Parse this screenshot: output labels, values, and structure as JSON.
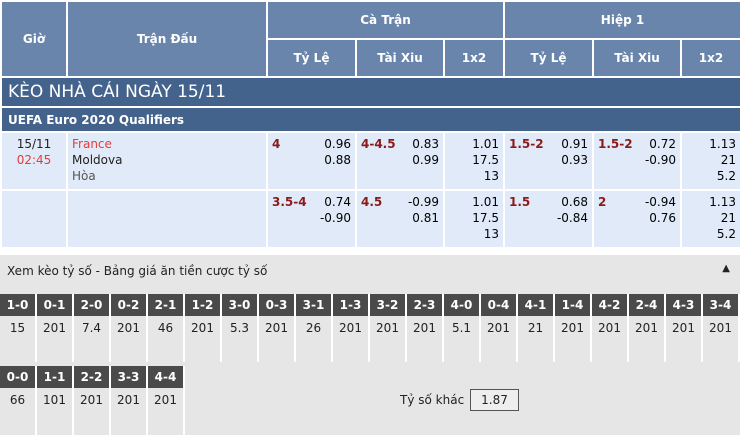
{
  "header": {
    "time": "Giờ",
    "match": "Trận Đấu",
    "full": "Cà Trận",
    "half": "Hiệp 1",
    "hcap": "Tỷ Lệ",
    "ou": "Tài Xiu",
    "x12": "1x2"
  },
  "title": "KÈO NHÀ CÁI NGÀY 15/11",
  "league": "UEFA Euro 2020 Qualifiers",
  "match": {
    "date": "15/11",
    "time": "02:45",
    "home": "France",
    "away": "Moldova",
    "draw": "Hòa"
  },
  "rows": [
    {
      "ft_h": "4",
      "ft_h1": "0.96",
      "ft_h2": "0.88",
      "ft_o": "4-4.5",
      "ft_o1": "0.83",
      "ft_o2": "0.99",
      "ft_x1": "1.01",
      "ft_x2": "17.5",
      "ft_x3": "13",
      "h_h": "1.5-2",
      "h_h1": "0.91",
      "h_h2": "0.93",
      "h_o": "1.5-2",
      "h_o1": "0.72",
      "h_o2": "-0.90",
      "h_x1": "1.13",
      "h_x2": "21",
      "h_x3": "5.2"
    },
    {
      "ft_h": "3.5-4",
      "ft_h1": "0.74",
      "ft_h2": "-0.90",
      "ft_o": "4.5",
      "ft_o1": "-0.99",
      "ft_o2": "0.81",
      "ft_x1": "1.01",
      "ft_x2": "17.5",
      "ft_x3": "13",
      "h_h": "1.5",
      "h_h1": "0.68",
      "h_h2": "-0.84",
      "h_o": "2",
      "h_o1": "-0.94",
      "h_o2": "0.76",
      "h_x1": "1.13",
      "h_x2": "21",
      "h_x3": "5.2"
    }
  ],
  "score": {
    "label": "Xem kèo tỷ số - Bảng giá ăn tiền cược tỷ số",
    "other_label": "Tỷ số khác",
    "other_value": "1.87",
    "row1": [
      [
        "1-0",
        "15"
      ],
      [
        "0-1",
        "201"
      ],
      [
        "2-0",
        "7.4"
      ],
      [
        "0-2",
        "201"
      ],
      [
        "2-1",
        "46"
      ],
      [
        "1-2",
        "201"
      ],
      [
        "3-0",
        "5.3"
      ],
      [
        "0-3",
        "201"
      ],
      [
        "3-1",
        "26"
      ],
      [
        "1-3",
        "201"
      ],
      [
        "3-2",
        "201"
      ],
      [
        "2-3",
        "201"
      ],
      [
        "4-0",
        "5.1"
      ],
      [
        "0-4",
        "201"
      ],
      [
        "4-1",
        "21"
      ],
      [
        "1-4",
        "201"
      ],
      [
        "4-2",
        "201"
      ],
      [
        "2-4",
        "201"
      ],
      [
        "4-3",
        "201"
      ],
      [
        "3-4",
        "201"
      ]
    ],
    "row2": [
      [
        "0-0",
        "66"
      ],
      [
        "1-1",
        "101"
      ],
      [
        "2-2",
        "201"
      ],
      [
        "3-3",
        "201"
      ],
      [
        "4-4",
        "201"
      ]
    ]
  }
}
